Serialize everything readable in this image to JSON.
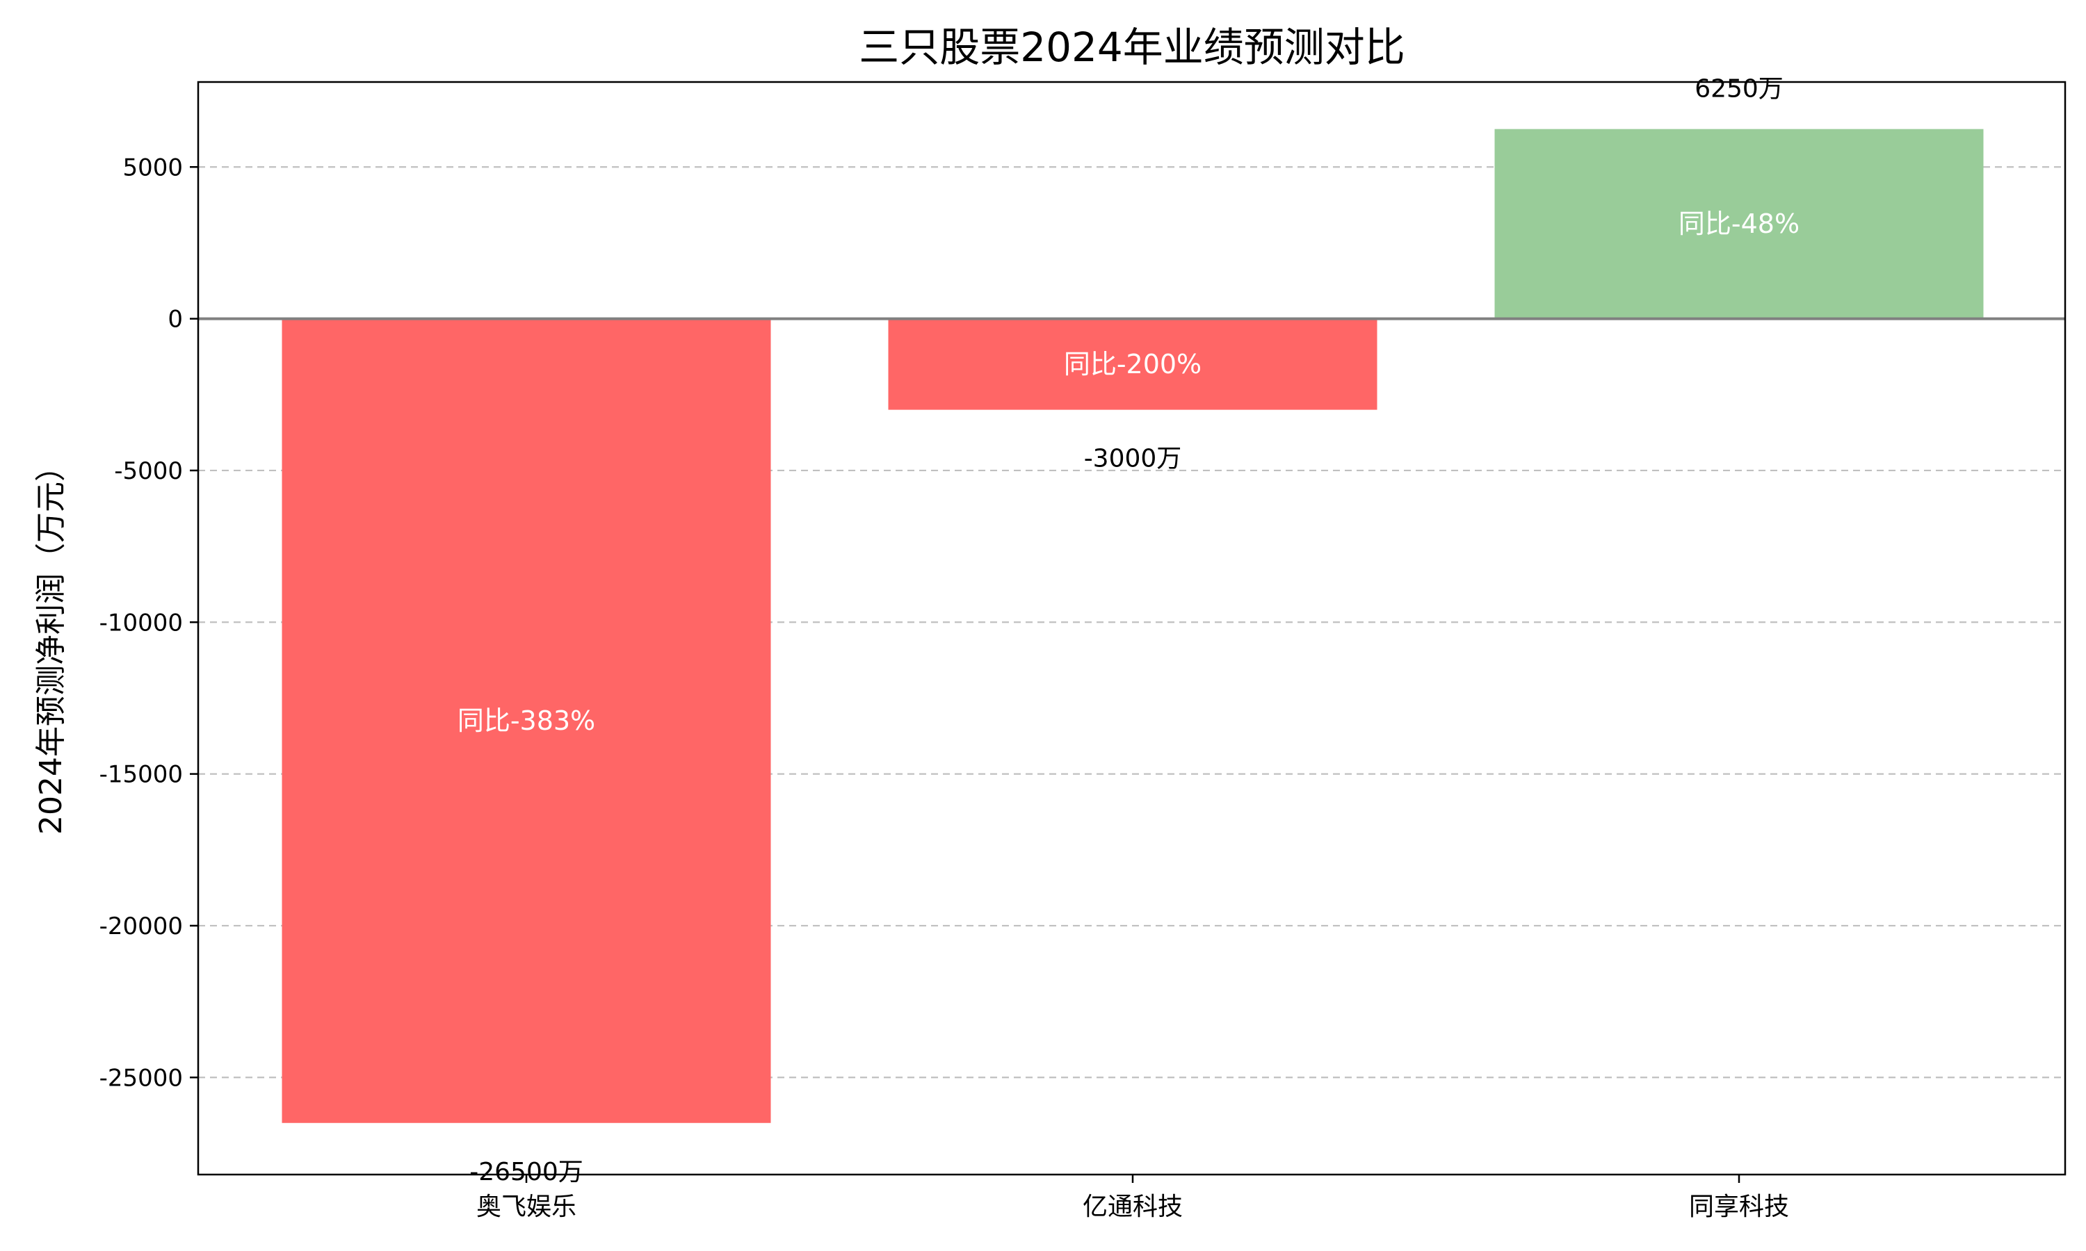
{
  "chart_data": {
    "type": "bar",
    "title": "三只股票2024年业绩预测对比",
    "xlabel": "",
    "ylabel": "2024年预测净利润（万元）",
    "ylim": [
      -28200,
      7800
    ],
    "yticks": [
      5000,
      0,
      -5000,
      -10000,
      -15000,
      -20000,
      -25000
    ],
    "grid": true,
    "categories": [
      "奥飞娱乐",
      "亿通科技",
      "同享科技"
    ],
    "values": [
      -26500,
      -3000,
      6250
    ],
    "value_labels": [
      "-26500万",
      "-3000万",
      "6250万"
    ],
    "yoy_labels": [
      "同比-383%",
      "同比-200%",
      "同比-48%"
    ],
    "colors": {
      "negative": "#ff6666",
      "positive": "#99cc99",
      "grid": "#c0c0c0",
      "zero_line": "#808080"
    }
  }
}
